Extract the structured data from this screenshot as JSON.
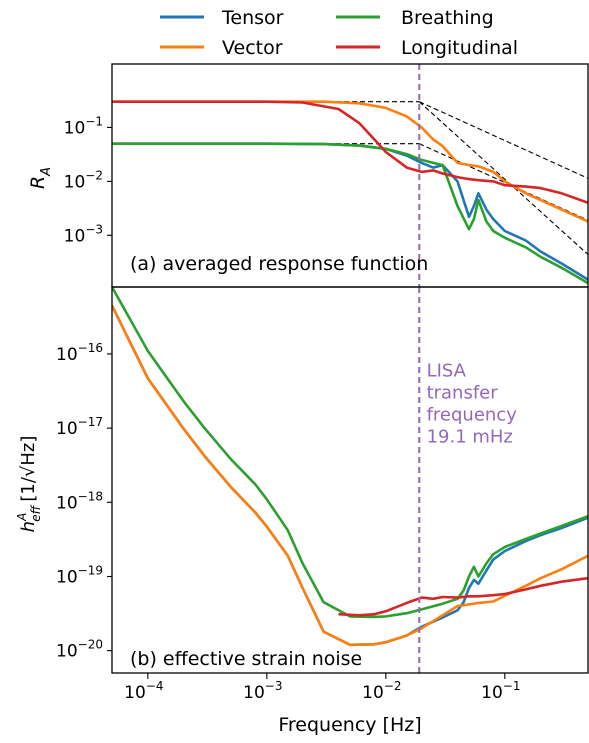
{
  "legend": {
    "entries": [
      {
        "label": "Tensor",
        "color": "#1f77b4"
      },
      {
        "label": "Vector",
        "color": "#ff7f0e"
      },
      {
        "label": "Breathing",
        "color": "#2ca02c"
      },
      {
        "label": "Longitudinal",
        "color": "#d62728"
      }
    ],
    "placement": "top, above plots, 2 columns"
  },
  "xlabel": "Frequency [Hz]",
  "xticks": [
    {
      "label": "10",
      "exp": "−4",
      "value": 0.0001
    },
    {
      "label": "10",
      "exp": "−3",
      "value": 0.001
    },
    {
      "label": "10",
      "exp": "−2",
      "value": 0.01
    },
    {
      "label": "10",
      "exp": "−1",
      "value": 0.1
    }
  ],
  "chart_data": [
    {
      "type": "line",
      "panel_label": "(a) averaged response function",
      "ylabel": "R",
      "ylabel_sub": "A",
      "xscale": "log",
      "yscale": "log",
      "xlim": [
        5e-05,
        0.5
      ],
      "ylim": [
        0.00011,
        1.5
      ],
      "yticks": [
        {
          "label": "10",
          "exp": "−1",
          "value": 0.1
        },
        {
          "label": "10",
          "exp": "−2",
          "value": 0.01
        },
        {
          "label": "10",
          "exp": "−3",
          "value": 0.001
        }
      ],
      "vline": {
        "x": 0.0191,
        "color": "#9467bd",
        "style": "dashed"
      },
      "asymptotes": [
        {
          "x": [
            5e-05,
            0.0191
          ],
          "y": [
            0.3,
            0.3
          ]
        },
        {
          "x": [
            5e-05,
            0.0191
          ],
          "y": [
            0.05,
            0.05
          ]
        },
        {
          "x": [
            0.0191,
            0.5
          ],
          "y": [
            0.3,
            0.0114
          ]
        },
        {
          "x": [
            0.0191,
            0.5
          ],
          "y": [
            0.05,
            0.0019
          ]
        },
        {
          "x": [
            0.0191,
            0.5
          ],
          "y": [
            0.3,
            0.00044
          ]
        }
      ],
      "series": [
        {
          "name": "Tensor",
          "color": "#1f77b4",
          "x": [
            5e-05,
            0.001,
            0.003,
            0.006,
            0.01,
            0.015,
            0.02,
            0.025,
            0.03,
            0.04,
            0.05,
            0.055,
            0.06,
            0.07,
            0.08,
            0.1,
            0.15,
            0.2,
            0.3,
            0.5
          ],
          "y": [
            0.05,
            0.05,
            0.049,
            0.046,
            0.04,
            0.03,
            0.022,
            0.018,
            0.02,
            0.01,
            0.0022,
            0.0035,
            0.006,
            0.003,
            0.002,
            0.0012,
            0.0008,
            0.0005,
            0.0003,
            0.00015
          ]
        },
        {
          "name": "Vector",
          "color": "#ff7f0e",
          "x": [
            5e-05,
            0.001,
            0.003,
            0.006,
            0.01,
            0.015,
            0.02,
            0.025,
            0.03,
            0.04,
            0.05,
            0.06,
            0.08,
            0.1,
            0.15,
            0.2,
            0.3,
            0.5
          ],
          "y": [
            0.3,
            0.3,
            0.3,
            0.28,
            0.23,
            0.16,
            0.1,
            0.06,
            0.045,
            0.022,
            0.02,
            0.019,
            0.015,
            0.01,
            0.006,
            0.0045,
            0.003,
            0.0018
          ]
        },
        {
          "name": "Breathing",
          "color": "#2ca02c",
          "x": [
            5e-05,
            0.001,
            0.003,
            0.006,
            0.01,
            0.015,
            0.02,
            0.025,
            0.03,
            0.04,
            0.05,
            0.055,
            0.06,
            0.07,
            0.08,
            0.1,
            0.15,
            0.2,
            0.3,
            0.5
          ],
          "y": [
            0.05,
            0.05,
            0.049,
            0.046,
            0.04,
            0.032,
            0.025,
            0.022,
            0.02,
            0.0035,
            0.0013,
            0.002,
            0.0045,
            0.0018,
            0.0012,
            0.0009,
            0.0006,
            0.0004,
            0.00025,
            0.00013
          ]
        },
        {
          "name": "Longitudinal",
          "color": "#d62728",
          "x": [
            5e-05,
            0.001,
            0.002,
            0.004,
            0.006,
            0.008,
            0.01,
            0.015,
            0.02,
            0.025,
            0.03,
            0.04,
            0.05,
            0.06,
            0.08,
            0.1,
            0.15,
            0.2,
            0.3,
            0.5
          ],
          "y": [
            0.3,
            0.3,
            0.29,
            0.22,
            0.12,
            0.06,
            0.035,
            0.018,
            0.015,
            0.016,
            0.014,
            0.012,
            0.011,
            0.0105,
            0.01,
            0.0085,
            0.008,
            0.0075,
            0.006,
            0.004
          ]
        }
      ]
    },
    {
      "type": "line",
      "panel_label": "(b) effective strain noise",
      "ylabel": "h",
      "ylabel_sup": "A",
      "ylabel_sub": "eff",
      "ylabel_unit": "[1/√Hz]",
      "xscale": "log",
      "yscale": "log",
      "xlim": [
        5e-05,
        0.5
      ],
      "ylim": [
        5e-21,
        8e-16
      ],
      "yticks": [
        {
          "label": "10",
          "exp": "−16",
          "value": 1e-16
        },
        {
          "label": "10",
          "exp": "−17",
          "value": 1e-17
        },
        {
          "label": "10",
          "exp": "−18",
          "value": 1e-18
        },
        {
          "label": "10",
          "exp": "−19",
          "value": 1e-19
        },
        {
          "label": "10",
          "exp": "−20",
          "value": 1e-20
        }
      ],
      "annotation": {
        "lines": [
          "LISA",
          "transfer",
          "frequency",
          "19.1 mHz"
        ],
        "color": "#9467bd",
        "x": 0.022,
        "y": 5e-17
      },
      "vline": {
        "x": 0.0191,
        "color": "#9467bd",
        "style": "dashed"
      },
      "series": [
        {
          "name": "Tensor",
          "color": "#1f77b4",
          "x": [
            5e-05,
            0.0001,
            0.0002,
            0.0003,
            0.0005,
            0.0008,
            0.001,
            0.0015,
            0.002,
            0.003,
            0.005,
            0.008,
            0.01,
            0.015,
            0.02,
            0.03,
            0.04,
            0.045,
            0.05,
            0.055,
            0.06,
            0.07,
            0.08,
            0.1,
            0.15,
            0.2,
            0.3,
            0.5
          ],
          "y": [
            4.5e-16,
            4.7e-17,
            9.8e-18,
            4.2e-18,
            1.6e-18,
            7.3e-19,
            4.7e-19,
            1.9e-19,
            7e-20,
            1.8e-20,
            1.2e-20,
            1.22e-20,
            1.3e-20,
            1.6e-20,
            2.1e-20,
            2.8e-20,
            3.5e-20,
            4.5e-20,
            7e-20,
            9e-20,
            8e-20,
            1.2e-19,
            1.7e-19,
            2.2e-19,
            3e-19,
            3.6e-19,
            4.5e-19,
            6.2e-19
          ]
        },
        {
          "name": "Vector",
          "color": "#ff7f0e",
          "x": [
            5e-05,
            0.0001,
            0.0002,
            0.0003,
            0.0005,
            0.0008,
            0.001,
            0.0015,
            0.002,
            0.003,
            0.005,
            0.008,
            0.01,
            0.015,
            0.02,
            0.03,
            0.04,
            0.05,
            0.06,
            0.08,
            0.1,
            0.15,
            0.2,
            0.3,
            0.5
          ],
          "y": [
            4.5e-16,
            4.7e-17,
            9.8e-18,
            4.2e-18,
            1.6e-18,
            7.3e-19,
            4.7e-19,
            1.9e-19,
            7e-20,
            1.8e-20,
            1.2e-20,
            1.22e-20,
            1.3e-20,
            1.6e-20,
            2e-20,
            3e-20,
            4e-20,
            4.2e-20,
            4.4e-20,
            4.6e-20,
            5.5e-20,
            7.5e-20,
            9.5e-20,
            1.25e-19,
            1.9e-19
          ]
        },
        {
          "name": "Breathing",
          "color": "#2ca02c",
          "x": [
            5e-05,
            0.0001,
            0.0002,
            0.0003,
            0.0005,
            0.0008,
            0.001,
            0.0015,
            0.002,
            0.003,
            0.005,
            0.008,
            0.01,
            0.015,
            0.02,
            0.03,
            0.04,
            0.045,
            0.05,
            0.055,
            0.06,
            0.07,
            0.08,
            0.1,
            0.15,
            0.2,
            0.3,
            0.5
          ],
          "y": [
            8e-16,
            1.1e-16,
            2.3e-17,
            1e-17,
            3.8e-18,
            1.75e-18,
            1.1e-18,
            4.2e-19,
            1.5e-19,
            4.5e-20,
            2.9e-20,
            2.85e-20,
            2.9e-20,
            3.2e-20,
            3.6e-20,
            4.3e-20,
            5e-20,
            6.5e-20,
            1e-19,
            1.35e-19,
            1e-19,
            1.5e-19,
            2e-19,
            2.5e-19,
            3.2e-19,
            3.8e-19,
            4.8e-19,
            6.5e-19
          ]
        },
        {
          "name": "Longitudinal",
          "color": "#d62728",
          "x": [
            0.004,
            0.006,
            0.008,
            0.01,
            0.015,
            0.02,
            0.025,
            0.03,
            0.04,
            0.05,
            0.06,
            0.08,
            0.1,
            0.15,
            0.2,
            0.3,
            0.5
          ],
          "y": [
            3.1e-20,
            3e-20,
            3.1e-20,
            3.4e-20,
            4.4e-20,
            5.2e-20,
            5e-20,
            5.3e-20,
            5.2e-20,
            5.4e-20,
            5.4e-20,
            5.6e-20,
            5.8e-20,
            6.7e-20,
            7.5e-20,
            8.5e-20,
            9.5e-20
          ]
        }
      ]
    }
  ]
}
